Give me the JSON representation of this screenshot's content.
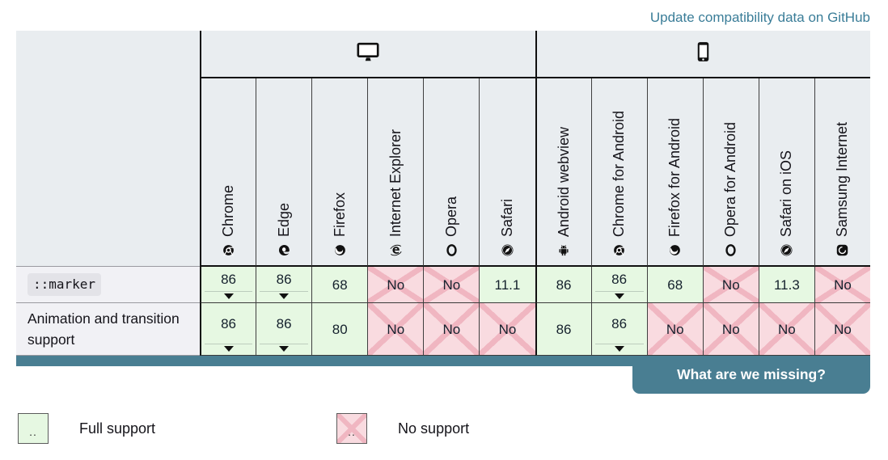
{
  "header": {
    "update_link": "Update compatibility data on GitHub"
  },
  "table": {
    "platforms": [
      {
        "name": "desktop",
        "icon": "desktop-icon"
      },
      {
        "name": "mobile",
        "icon": "mobile-icon"
      }
    ],
    "browsers": [
      {
        "label": "Chrome",
        "icon": "chrome-icon"
      },
      {
        "label": "Edge",
        "icon": "edge-icon"
      },
      {
        "label": "Firefox",
        "icon": "firefox-icon"
      },
      {
        "label": "Internet Explorer",
        "icon": "internet-explorer-icon"
      },
      {
        "label": "Opera",
        "icon": "opera-icon"
      },
      {
        "label": "Safari",
        "icon": "safari-icon"
      },
      {
        "label": "Android webview",
        "icon": "android-icon"
      },
      {
        "label": "Chrome for Android",
        "icon": "chrome-icon"
      },
      {
        "label": "Firefox for Android",
        "icon": "firefox-icon"
      },
      {
        "label": "Opera for Android",
        "icon": "opera-icon"
      },
      {
        "label": "Safari on iOS",
        "icon": "safari-icon"
      },
      {
        "label": "Samsung Internet",
        "icon": "samsung-icon"
      }
    ],
    "rows": [
      {
        "feature": "::marker",
        "is_code": true,
        "cells": [
          {
            "text": "86",
            "support": "full",
            "history": true
          },
          {
            "text": "86",
            "support": "full",
            "history": true
          },
          {
            "text": "68",
            "support": "full",
            "history": false
          },
          {
            "text": "No",
            "support": "none",
            "history": false
          },
          {
            "text": "No",
            "support": "none",
            "history": false
          },
          {
            "text": "11.1",
            "support": "full",
            "history": false
          },
          {
            "text": "86",
            "support": "full",
            "history": false
          },
          {
            "text": "86",
            "support": "full",
            "history": true
          },
          {
            "text": "68",
            "support": "full",
            "history": false
          },
          {
            "text": "No",
            "support": "none",
            "history": false
          },
          {
            "text": "11.3",
            "support": "full",
            "history": false
          },
          {
            "text": "No",
            "support": "none",
            "history": false
          }
        ]
      },
      {
        "feature": "Animation and transition support",
        "is_code": false,
        "cells": [
          {
            "text": "86",
            "support": "full",
            "history": true
          },
          {
            "text": "86",
            "support": "full",
            "history": true
          },
          {
            "text": "80",
            "support": "full",
            "history": false
          },
          {
            "text": "No",
            "support": "none",
            "history": false
          },
          {
            "text": "No",
            "support": "none",
            "history": false
          },
          {
            "text": "No",
            "support": "none",
            "history": false
          },
          {
            "text": "86",
            "support": "full",
            "history": false
          },
          {
            "text": "86",
            "support": "full",
            "history": true
          },
          {
            "text": "No",
            "support": "none",
            "history": false
          },
          {
            "text": "No",
            "support": "none",
            "history": false
          },
          {
            "text": "No",
            "support": "none",
            "history": false
          },
          {
            "text": "No",
            "support": "none",
            "history": false
          }
        ]
      }
    ]
  },
  "survey_button": {
    "label": "What are we missing?"
  },
  "legend": {
    "items": [
      {
        "marker": "..",
        "label": "Full support",
        "type": "full"
      },
      {
        "marker": "..",
        "label": "No support",
        "type": "none"
      }
    ]
  },
  "colors": {
    "accent": "#497e92",
    "link": "#3a7d98",
    "full_bg": "#e6f8e2",
    "none_bg": "#f9dbe0",
    "none_x": "#f0b6c1"
  }
}
